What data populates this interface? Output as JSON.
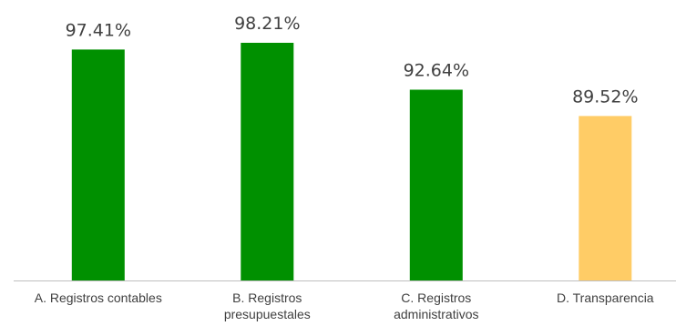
{
  "chart_data": {
    "type": "bar",
    "categories": [
      [
        "A. Registros contables"
      ],
      [
        "B. Registros",
        "presupuestales"
      ],
      [
        "C. Registros",
        "administrativos"
      ],
      [
        "D. Transparencia"
      ]
    ],
    "values": [
      97.41,
      98.21,
      92.64,
      89.52
    ],
    "data_labels": [
      "97.41%",
      "98.21%",
      "92.64%",
      "89.52%"
    ],
    "bar_colors": [
      "#009000",
      "#009000",
      "#009000",
      "#FFCC66"
    ],
    "axis_color": "#BFBFBF",
    "ylim": [
      70,
      100
    ],
    "grid": false,
    "legend": "none"
  }
}
